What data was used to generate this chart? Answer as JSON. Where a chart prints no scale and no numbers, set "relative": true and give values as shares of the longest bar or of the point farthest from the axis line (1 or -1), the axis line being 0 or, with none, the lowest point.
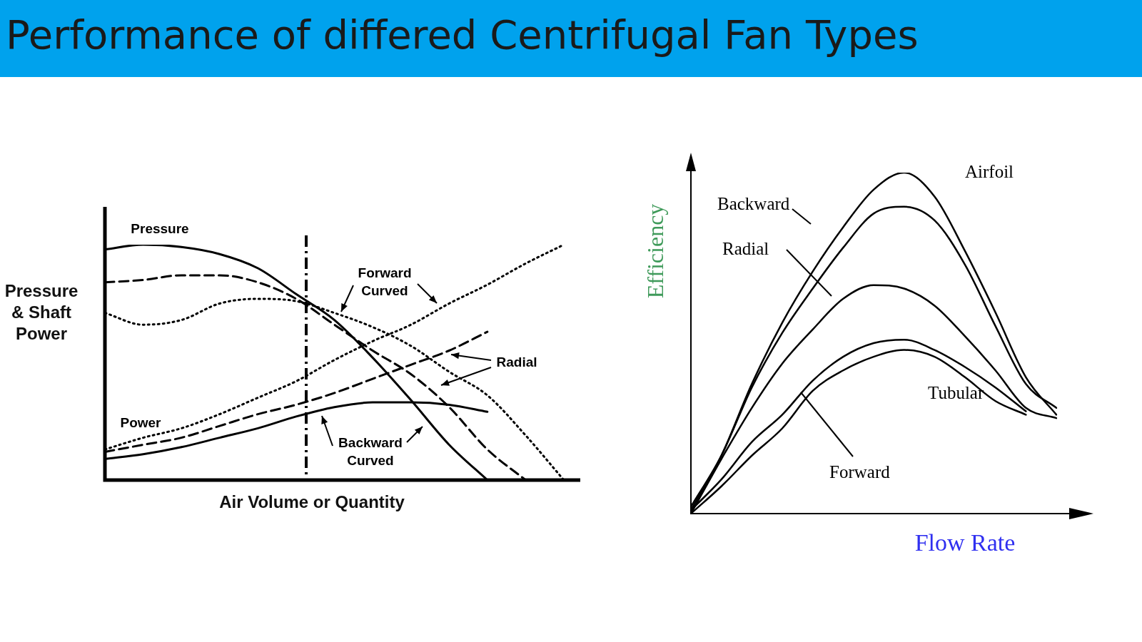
{
  "chart_data": [
    {
      "type": "line",
      "title": "Performance of differed Centrifugal Fan Types",
      "xlabel": "Air Volume or Quantity",
      "ylabel": "Pressure & Shaft Power",
      "relative": true,
      "marker": "none",
      "categories": [
        null,
        null,
        null,
        null,
        null,
        null,
        null,
        null,
        null,
        null,
        null,
        null,
        null
      ],
      "series": [
        {
          "color": "#000000",
          "line_style": "solid",
          "values": [
            0.98,
            1.0,
            0.99,
            0.96,
            0.9,
            0.79,
            0.68,
            0.52,
            0.34,
            0.15,
            0,
            null,
            null
          ]
        },
        {
          "color": "#000000",
          "line_style": "dashed",
          "values": [
            0.84,
            0.85,
            0.87,
            0.87,
            0.84,
            0.77,
            0.66,
            0.55,
            0.45,
            0.31,
            0.13,
            0,
            null
          ]
        },
        {
          "color": "#000000",
          "line_style": "dotted",
          "values": [
            0.71,
            0.66,
            0.68,
            0.75,
            0.77,
            0.76,
            0.71,
            0.65,
            0.57,
            0.46,
            0.36,
            0.19,
            0
          ]
        },
        {
          "color": "#000000",
          "line_style": "solid",
          "values": [
            0.09,
            0.11,
            0.14,
            0.18,
            0.22,
            0.27,
            0.31,
            0.33,
            0.33,
            0.32,
            0.29,
            null,
            null
          ]
        },
        {
          "color": "#000000",
          "line_style": "dashed",
          "values": [
            0.12,
            0.15,
            0.18,
            0.23,
            0.28,
            0.32,
            0.37,
            0.43,
            0.49,
            0.55,
            0.63,
            null,
            null
          ]
        },
        {
          "color": "#000000",
          "line_style": "dotted",
          "values": [
            0.13,
            0.18,
            0.22,
            0.28,
            0.35,
            0.42,
            0.51,
            0.59,
            0.66,
            0.75,
            0.83,
            0.92,
            1.0
          ]
        }
      ],
      "annotations": [
        "Pressure",
        "Power",
        "Forward Curved",
        "Radial",
        "Backward Curved"
      ]
    },
    {
      "type": "line",
      "xlabel": "Flow Rate",
      "ylabel": "Efficiency",
      "relative": true,
      "marker": "none",
      "categories": [
        null,
        null,
        null,
        null,
        null,
        null,
        null,
        null,
        null,
        null,
        null,
        null,
        null
      ],
      "series": [
        {
          "color": "#000000",
          "values": [
            0.01,
            0.17,
            0.38,
            0.56,
            0.71,
            0.84,
            0.95,
            1.0,
            0.93,
            0.77,
            0.59,
            0.4,
            0.29
          ]
        },
        {
          "color": "#000000",
          "values": [
            0.02,
            0.17,
            0.37,
            0.53,
            0.66,
            0.78,
            0.88,
            0.9,
            0.86,
            0.73,
            0.55,
            0.38,
            0.31
          ]
        },
        {
          "color": "#000000",
          "values": [
            0,
            0.16,
            0.31,
            0.44,
            0.54,
            0.63,
            0.67,
            0.66,
            0.61,
            0.52,
            0.42,
            0.31,
            0.28
          ]
        },
        {
          "color": "#000000",
          "values": [
            0.01,
            0.1,
            0.21,
            0.29,
            0.39,
            0.46,
            0.5,
            0.51,
            0.48,
            0.43,
            0.37,
            0.3,
            null
          ]
        },
        {
          "color": "#000000",
          "values": [
            0,
            0.08,
            0.17,
            0.25,
            0.36,
            0.42,
            0.46,
            0.48,
            0.46,
            0.4,
            0.33,
            0.29,
            null
          ]
        }
      ],
      "annotations": [
        "Airfoil",
        "Backward",
        "Radial",
        "Tubular",
        "Forward"
      ]
    }
  ]
}
